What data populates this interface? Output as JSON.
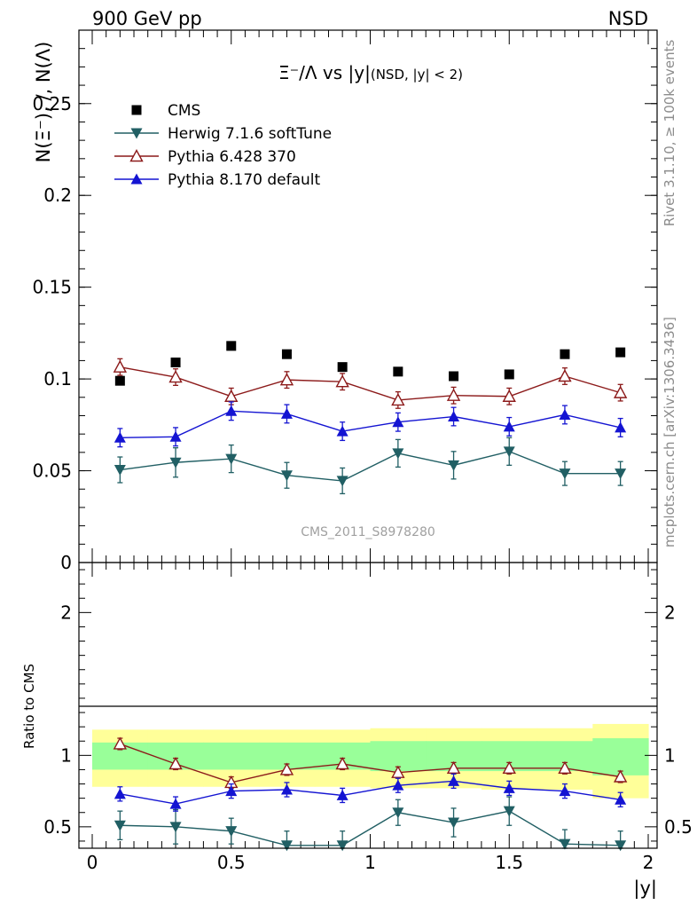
{
  "header": {
    "left": "900 GeV pp",
    "right": "NSD"
  },
  "side_labels": {
    "rivet": "Rivet 3.1.10, ≥ 100k events",
    "mcplots": "mcplots.cern.ch [arXiv:1306.3436]"
  },
  "watermark": "CMS_2011_S8978280",
  "chart_data": [
    {
      "type": "scatter",
      "panel": "main",
      "title": "Ξ⁻/Λ vs |y|",
      "title_suffix": "(NSD, |y| < 2)",
      "xlabel": "|y|",
      "ylabel": "N(Ξ⁻), /, N(Λ)",
      "xlim": [
        0,
        2
      ],
      "ylim": [
        0,
        0.29
      ],
      "yticks": [
        0,
        0.05,
        0.1,
        0.15,
        0.2,
        0.25
      ],
      "ytick_labels": [
        "0",
        "0.05",
        "0.1",
        "0.15",
        "0.2",
        "0.25"
      ],
      "x": [
        0.1,
        0.3,
        0.5,
        0.7,
        0.9,
        1.1,
        1.3,
        1.5,
        1.7,
        1.9
      ],
      "series": [
        {
          "name": "CMS",
          "marker": "square",
          "color": "#000000",
          "line": false,
          "values": [
            0.099,
            0.109,
            0.118,
            0.1135,
            0.1065,
            0.104,
            0.1015,
            0.1025,
            0.1135,
            0.1145
          ],
          "errors": [
            0.002,
            0.002,
            0.002,
            0.002,
            0.002,
            0.002,
            0.002,
            0.002,
            0.002,
            0.002
          ]
        },
        {
          "name": "Herwig 7.1.6 softTune",
          "marker": "triangle-down",
          "color": "#215f64",
          "line": true,
          "values": [
            0.0505,
            0.0545,
            0.0565,
            0.0475,
            0.0445,
            0.0595,
            0.053,
            0.0605,
            0.0485,
            0.0485
          ],
          "errors": [
            0.007,
            0.008,
            0.0075,
            0.007,
            0.007,
            0.0075,
            0.0075,
            0.0075,
            0.0065,
            0.0065
          ]
        },
        {
          "name": "Pythia 6.428 370",
          "marker": "triangle-up-open",
          "color": "#8c1a1a",
          "line": true,
          "values": [
            0.1065,
            0.101,
            0.0905,
            0.0995,
            0.0985,
            0.0885,
            0.091,
            0.0905,
            0.1015,
            0.0925
          ],
          "errors": [
            0.0045,
            0.0045,
            0.0045,
            0.0045,
            0.0045,
            0.0045,
            0.0045,
            0.0045,
            0.0045,
            0.0045
          ]
        },
        {
          "name": "Pythia 8.170 default",
          "marker": "triangle-up",
          "color": "#1414d2",
          "line": true,
          "values": [
            0.068,
            0.0685,
            0.0825,
            0.081,
            0.0715,
            0.0765,
            0.0795,
            0.074,
            0.0805,
            0.0735
          ],
          "errors": [
            0.005,
            0.005,
            0.005,
            0.005,
            0.005,
            0.005,
            0.005,
            0.005,
            0.005,
            0.005
          ]
        }
      ]
    },
    {
      "type": "scatter",
      "panel": "ratio",
      "xlabel": "|y|",
      "ylabel": "Ratio to CMS",
      "xlim": [
        0,
        2
      ],
      "ylim": [
        0.35,
        2.35
      ],
      "yticks": [
        0.5,
        1,
        2
      ],
      "ytick_labels": [
        "0.5",
        "1",
        "2"
      ],
      "xticks": [
        0,
        0.5,
        1,
        1.5,
        2
      ],
      "xtick_labels": [
        "0",
        "0.5",
        "1",
        "1.5",
        "2"
      ],
      "x": [
        0.1,
        0.3,
        0.5,
        0.7,
        0.9,
        1.1,
        1.3,
        1.5,
        1.7,
        1.9
      ],
      "bands": {
        "yellow": {
          "color": "#ffff99",
          "low": [
            0.78,
            0.78,
            0.78,
            0.78,
            0.78,
            0.77,
            0.77,
            0.76,
            0.76,
            0.7
          ],
          "high": [
            1.18,
            1.18,
            1.18,
            1.18,
            1.18,
            1.19,
            1.19,
            1.19,
            1.19,
            1.22
          ]
        },
        "green": {
          "color": "#99ff99",
          "low": [
            0.9,
            0.9,
            0.9,
            0.9,
            0.9,
            0.89,
            0.89,
            0.89,
            0.89,
            0.86
          ],
          "high": [
            1.09,
            1.09,
            1.09,
            1.09,
            1.09,
            1.1,
            1.1,
            1.1,
            1.1,
            1.12
          ]
        }
      },
      "series": [
        {
          "name": "Herwig 7.1.6 softTune",
          "marker": "triangle-down",
          "color": "#215f64",
          "line": true,
          "values": [
            0.51,
            0.5,
            0.47,
            0.37,
            0.37,
            0.6,
            0.53,
            0.61,
            0.38,
            0.37
          ],
          "errors": [
            0.1,
            0.12,
            0.09,
            0.1,
            0.1,
            0.09,
            0.1,
            0.1,
            0.1,
            0.1
          ]
        },
        {
          "name": "Pythia 6.428 370",
          "marker": "triangle-up-open",
          "color": "#8c1a1a",
          "line": true,
          "values": [
            1.08,
            0.94,
            0.81,
            0.9,
            0.94,
            0.88,
            0.91,
            0.91,
            0.91,
            0.85
          ],
          "errors": [
            0.04,
            0.04,
            0.04,
            0.04,
            0.04,
            0.04,
            0.04,
            0.04,
            0.04,
            0.04
          ]
        },
        {
          "name": "Pythia 8.170 default",
          "marker": "triangle-up",
          "color": "#1414d2",
          "line": true,
          "values": [
            0.73,
            0.66,
            0.75,
            0.76,
            0.72,
            0.79,
            0.82,
            0.77,
            0.75,
            0.69
          ],
          "errors": [
            0.05,
            0.05,
            0.05,
            0.05,
            0.05,
            0.05,
            0.05,
            0.05,
            0.05,
            0.05
          ]
        }
      ]
    }
  ]
}
